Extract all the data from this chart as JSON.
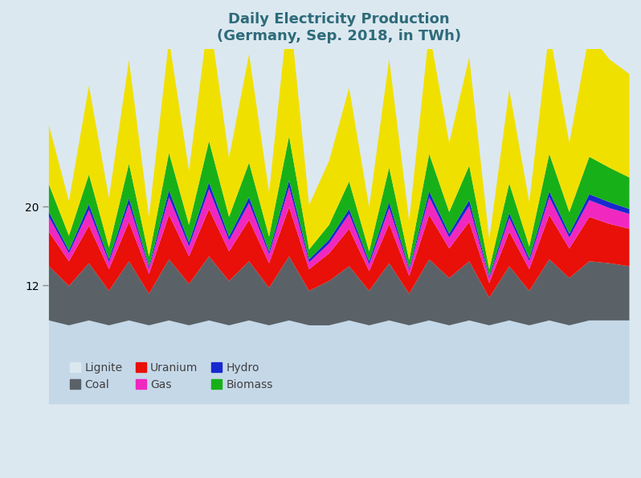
{
  "title_line1": "Daily Electricity Production",
  "title_line2": "(Germany, Sep. 2018, in TWh)",
  "title_color": "#2e6b7a",
  "background_color": "#dce8f0",
  "days": [
    1,
    2,
    3,
    4,
    5,
    6,
    7,
    8,
    9,
    10,
    11,
    12,
    13,
    14,
    15,
    16,
    17,
    18,
    19,
    20,
    21,
    22,
    23,
    24,
    25,
    26,
    27,
    28,
    29,
    30
  ],
  "lignite": [
    8.5,
    8.0,
    8.5,
    8.0,
    8.5,
    8.0,
    8.5,
    8.0,
    8.5,
    8.0,
    8.5,
    8.0,
    8.5,
    8.0,
    8.0,
    8.5,
    8.0,
    8.5,
    8.0,
    8.5,
    8.0,
    8.5,
    8.0,
    8.5,
    8.0,
    8.5,
    8.0,
    8.5,
    8.5,
    8.5
  ],
  "coal": [
    5.5,
    4.0,
    5.8,
    3.5,
    6.0,
    3.2,
    6.2,
    4.2,
    6.5,
    4.5,
    6.0,
    3.8,
    6.5,
    3.5,
    4.5,
    5.5,
    3.5,
    5.8,
    3.2,
    6.2,
    4.8,
    6.0,
    2.8,
    5.5,
    3.5,
    6.2,
    4.8,
    6.0,
    5.8,
    5.5
  ],
  "uranium": [
    3.5,
    2.5,
    3.8,
    2.2,
    4.0,
    2.0,
    4.5,
    2.8,
    4.8,
    3.0,
    4.2,
    2.5,
    5.0,
    2.2,
    2.8,
    3.8,
    2.0,
    4.0,
    1.8,
    4.5,
    3.0,
    4.0,
    1.5,
    3.5,
    2.2,
    4.5,
    3.0,
    4.5,
    4.0,
    3.8
  ],
  "gas": [
    1.5,
    0.8,
    1.6,
    0.7,
    1.8,
    0.6,
    1.8,
    1.0,
    2.0,
    1.1,
    1.7,
    0.9,
    2.0,
    0.7,
    1.0,
    1.5,
    0.7,
    1.6,
    0.6,
    1.8,
    1.1,
    1.6,
    0.5,
    1.4,
    0.8,
    1.8,
    1.1,
    1.7,
    1.6,
    1.5
  ],
  "hydro": [
    0.5,
    0.3,
    0.6,
    0.3,
    0.6,
    0.2,
    0.7,
    0.4,
    0.7,
    0.4,
    0.6,
    0.3,
    0.7,
    0.3,
    0.4,
    0.5,
    0.3,
    0.6,
    0.2,
    0.6,
    0.4,
    0.6,
    0.2,
    0.5,
    0.3,
    0.6,
    0.4,
    0.6,
    0.6,
    0.5
  ],
  "biomass": [
    2.8,
    1.5,
    3.0,
    1.2,
    3.5,
    1.0,
    3.8,
    1.8,
    4.2,
    2.0,
    3.5,
    1.5,
    4.5,
    1.0,
    1.5,
    2.8,
    1.0,
    3.5,
    0.8,
    3.8,
    2.2,
    3.5,
    0.7,
    3.0,
    1.2,
    3.8,
    2.2,
    3.8,
    3.5,
    3.2
  ],
  "wind": [
    6.0,
    3.5,
    9.0,
    5.0,
    10.5,
    4.0,
    11.5,
    5.5,
    13.0,
    6.0,
    11.0,
    4.5,
    13.5,
    4.5,
    6.5,
    9.5,
    4.5,
    11.0,
    4.0,
    12.5,
    7.0,
    11.0,
    3.0,
    9.5,
    4.5,
    12.5,
    7.0,
    12.5,
    11.0,
    10.5
  ],
  "colors": {
    "lignite": "#c5d8e8",
    "coal": "#5a6268",
    "uranium": "#e81008",
    "gas": "#f028c0",
    "hydro": "#1828d0",
    "biomass": "#18b018",
    "wind": "#f0e000"
  },
  "legend_rows": [
    [
      {
        "label": "Lignite",
        "color": null
      },
      {
        "label": "Coal",
        "color": "#5a6268"
      },
      {
        "label": "Uranium",
        "color": "#e81008"
      }
    ],
    [
      {
        "label": "Gas",
        "color": "#f028c0"
      },
      {
        "label": "Hydro",
        "color": "#1828d0"
      },
      {
        "label": "Biomass",
        "color": "#18b018"
      }
    ]
  ],
  "ylim": [
    0,
    36
  ],
  "xlim": [
    1,
    30
  ]
}
